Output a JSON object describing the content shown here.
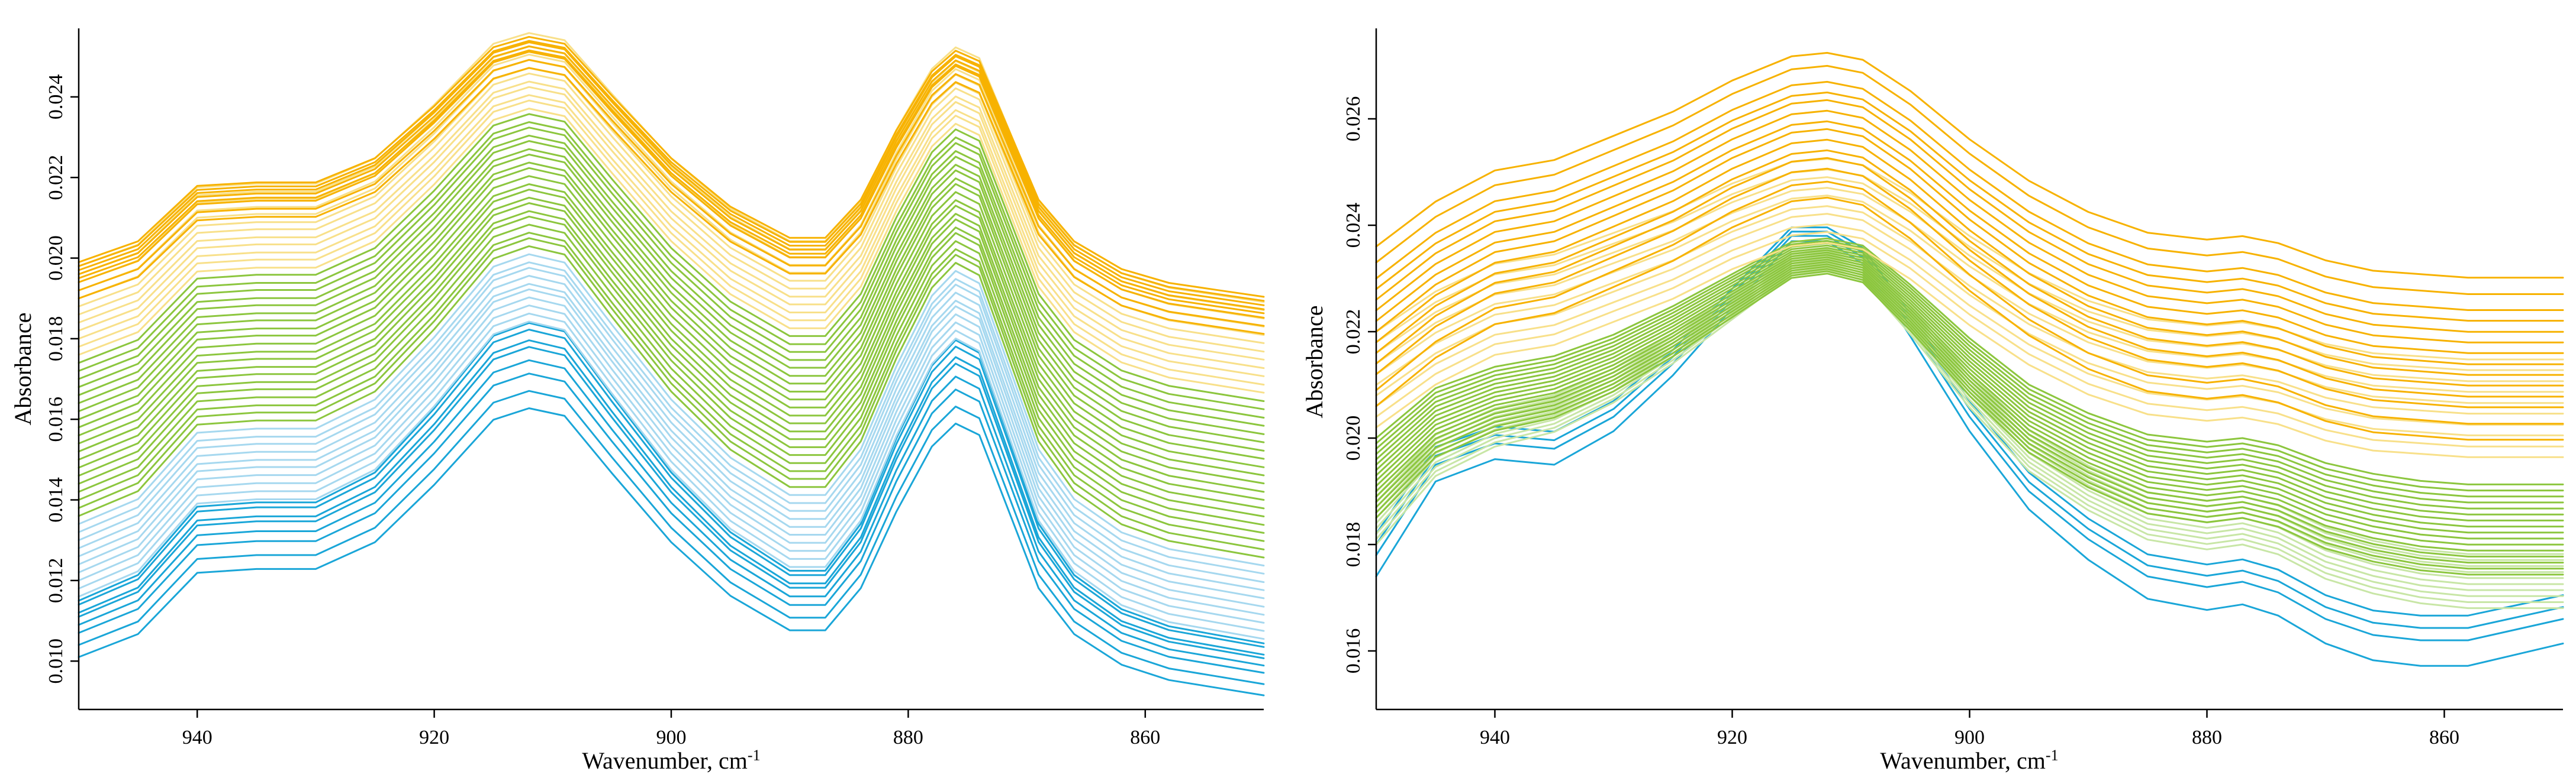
{
  "chart_data": [
    {
      "type": "line",
      "title": "",
      "xlabel": "Wavenumber, cm",
      "xlabel_sup": "-1",
      "ylabel": "Absorbance",
      "xlim": [
        950,
        850
      ],
      "ylim": [
        0.0088,
        0.0257
      ],
      "x_ticks": [
        940,
        920,
        900,
        880,
        860
      ],
      "y_ticks": [
        0.01,
        0.012,
        0.014,
        0.016,
        0.018,
        0.02,
        0.022,
        0.024
      ],
      "y_tick_labels": [
        "0.010",
        "0.012",
        "0.014",
        "0.016",
        "0.018",
        "0.020",
        "0.022",
        "0.024"
      ],
      "grid": false,
      "legend": "none",
      "x": [
        950,
        945,
        940,
        935,
        930,
        925,
        920,
        915,
        912,
        909,
        905,
        900,
        895,
        890,
        887,
        884,
        881,
        878,
        876,
        874,
        872,
        869,
        866,
        862,
        858,
        854,
        850
      ],
      "series_groups": [
        {
          "name": "blue",
          "color": "#1aa6d8",
          "count": 8,
          "shape": [
            0,
            0.6,
            2.2,
            2.3,
            2.3,
            3.0,
            4.5,
            6.2,
            6.5,
            6.3,
            4.8,
            3.0,
            1.6,
            0.7,
            0.7,
            1.8,
            3.8,
            5.5,
            6.1,
            5.8,
            4.2,
            1.8,
            0.6,
            -0.2,
            -0.6,
            -0.8,
            -1.0
          ],
          "start": [
            0.0101,
            0.0104,
            0.0107,
            0.0109,
            0.0111,
            0.0112,
            0.0114,
            0.0115
          ],
          "scale": [
            0.00095,
            0.00097,
            0.00099,
            0.00101,
            0.00103,
            0.00104,
            0.00105,
            0.00106
          ]
        },
        {
          "name": "light-blue",
          "color": "#a6d8ef",
          "count": 10,
          "shape": [
            0,
            0.6,
            2.2,
            2.3,
            2.3,
            3.0,
            4.5,
            6.2,
            6.5,
            6.3,
            4.8,
            3.0,
            1.6,
            0.7,
            0.7,
            1.8,
            3.8,
            5.5,
            6.1,
            5.8,
            4.2,
            1.8,
            0.6,
            -0.2,
            -0.6,
            -0.8,
            -1.0
          ],
          "start": [
            0.0116,
            0.0118,
            0.012,
            0.0122,
            0.0124,
            0.0126,
            0.0128,
            0.013,
            0.0132,
            0.0134
          ],
          "scale": [
            0.00105,
            0.00105,
            0.00105,
            0.00105,
            0.00105,
            0.00104,
            0.00104,
            0.00104,
            0.00103,
            0.00103
          ]
        },
        {
          "name": "green",
          "color": "#8cc63e",
          "count": 20,
          "shape": [
            0,
            0.6,
            2.2,
            2.3,
            2.3,
            3.0,
            4.5,
            6.2,
            6.5,
            6.3,
            4.8,
            3.0,
            1.6,
            0.7,
            0.7,
            1.8,
            3.8,
            5.5,
            6.1,
            5.8,
            4.2,
            1.8,
            0.6,
            -0.2,
            -0.6,
            -0.8,
            -1.0
          ],
          "start": [
            0.0136,
            0.0138,
            0.014,
            0.0142,
            0.0144,
            0.0146,
            0.0148,
            0.015,
            0.0152,
            0.0154,
            0.0156,
            0.0158,
            0.016,
            0.0162,
            0.0164,
            0.0166,
            0.0168,
            0.017,
            0.0172,
            0.0174
          ],
          "scale": [
            0.00103,
            0.00103,
            0.00102,
            0.00102,
            0.00102,
            0.00101,
            0.00101,
            0.001,
            0.001,
            0.00099,
            0.00099,
            0.00099,
            0.00098,
            0.00098,
            0.00097,
            0.00097,
            0.00096,
            0.00096,
            0.00095,
            0.00095
          ]
        },
        {
          "name": "light-yellow",
          "color": "#f8e08a",
          "count": 12,
          "shape": [
            0,
            0.6,
            2.2,
            2.3,
            2.3,
            3.0,
            4.5,
            6.2,
            6.5,
            6.3,
            4.8,
            3.0,
            1.6,
            0.7,
            0.7,
            1.8,
            3.8,
            5.5,
            6.1,
            5.8,
            4.2,
            1.8,
            0.6,
            -0.2,
            -0.6,
            -0.8,
            -1.0
          ],
          "start": [
            0.0176,
            0.0178,
            0.018,
            0.0182,
            0.0184,
            0.0186,
            0.0188,
            0.019,
            0.0192,
            0.0194,
            0.0196,
            0.0198
          ],
          "scale": [
            0.00094,
            0.00094,
            0.00093,
            0.00093,
            0.00092,
            0.00092,
            0.00091,
            0.00091,
            0.0009,
            0.0009,
            0.00089,
            0.00089
          ]
        },
        {
          "name": "orange",
          "color": "#f7b200",
          "count": 8,
          "shape": [
            0,
            0.6,
            2.2,
            2.3,
            2.3,
            3.0,
            4.5,
            6.2,
            6.5,
            6.3,
            4.8,
            3.0,
            1.6,
            0.7,
            0.7,
            1.8,
            3.8,
            5.5,
            6.1,
            5.8,
            4.2,
            1.8,
            0.6,
            -0.2,
            -0.6,
            -0.8,
            -1.0
          ],
          "start": [
            0.019,
            0.0192,
            0.0194,
            0.0195,
            0.0196,
            0.0197,
            0.0198,
            0.0199
          ],
          "scale": [
            0.00088,
            0.00088,
            0.00088,
            0.00087,
            0.00087,
            0.00087,
            0.00086,
            0.00086
          ]
        }
      ]
    },
    {
      "type": "line",
      "title": "",
      "xlabel": "Wavenumber, cm",
      "xlabel_sup": "-1",
      "ylabel": "Absorbance",
      "xlim": [
        950,
        850
      ],
      "ylim": [
        0.0149,
        0.0277
      ],
      "x_ticks": [
        940,
        920,
        900,
        880,
        860
      ],
      "y_ticks": [
        0.016,
        0.018,
        0.02,
        0.022,
        0.024,
        0.026
      ],
      "y_tick_labels": [
        "0.016",
        "0.018",
        "0.020",
        "0.022",
        "0.024",
        "0.026"
      ],
      "grid": false,
      "legend": "none",
      "x": [
        950,
        945,
        940,
        935,
        930,
        925,
        920,
        915,
        912,
        909,
        905,
        900,
        895,
        890,
        885,
        880,
        877,
        874,
        870,
        866,
        862,
        858,
        854,
        850
      ],
      "series_groups": [
        {
          "name": "blue",
          "color": "#1aa6d8",
          "count": 4,
          "shape": [
            0,
            1.7,
            2.1,
            2.0,
            2.6,
            3.6,
            4.8,
            6.0,
            6.0,
            5.6,
            4.3,
            2.6,
            1.2,
            0.3,
            -0.4,
            -0.6,
            -0.5,
            -0.7,
            -1.2,
            -1.5,
            -1.6,
            -1.6,
            -1.4,
            -1.2
          ],
          "start": [
            0.0174,
            0.0178,
            0.018,
            0.0182
          ],
          "scale": [
            0.00105,
            0.001,
            0.00098,
            0.00096
          ]
        },
        {
          "name": "light-green",
          "color": "#c8e6a6",
          "count": 10,
          "shape": [
            0,
            1.4,
            2.0,
            2.3,
            2.9,
            3.7,
            4.6,
            5.5,
            5.6,
            5.4,
            4.3,
            2.8,
            1.5,
            0.7,
            0.1,
            -0.1,
            0.0,
            -0.2,
            -0.7,
            -1.0,
            -1.2,
            -1.3,
            -1.3,
            -1.3
          ],
          "start": [
            0.018,
            0.0181,
            0.0182,
            0.0183,
            0.0184,
            0.0185,
            0.0186,
            0.0187,
            0.0188,
            0.0189
          ],
          "scale": [
            0.00092,
            0.00091,
            0.0009,
            0.00089,
            0.00088,
            0.00087,
            0.00086,
            0.00085,
            0.00084,
            0.00083
          ]
        },
        {
          "name": "green",
          "color": "#8cc63e",
          "count": 16,
          "shape": [
            0,
            1.4,
            2.0,
            2.3,
            2.9,
            3.7,
            4.6,
            5.5,
            5.6,
            5.4,
            4.3,
            2.8,
            1.5,
            0.7,
            0.1,
            -0.1,
            0.0,
            -0.2,
            -0.7,
            -1.0,
            -1.2,
            -1.3,
            -1.3,
            -1.3
          ],
          "start": [
            0.0185,
            0.0186,
            0.0187,
            0.0188,
            0.0189,
            0.019,
            0.0191,
            0.0192,
            0.0193,
            0.0194,
            0.0195,
            0.0196,
            0.0197,
            0.0198,
            0.0199,
            0.02
          ],
          "scale": [
            0.00082,
            0.00081,
            0.0008,
            0.00079,
            0.00078,
            0.00077,
            0.00076,
            0.00075,
            0.00074,
            0.00073,
            0.00072,
            0.00071,
            0.0007,
            0.00069,
            0.00068,
            0.00067
          ]
        },
        {
          "name": "light-yellow",
          "color": "#f8e08a",
          "count": 10,
          "shape": [
            0,
            1.3,
            2.2,
            2.5,
            3.2,
            3.9,
            4.8,
            5.5,
            5.6,
            5.4,
            4.5,
            3.1,
            1.9,
            1.0,
            0.4,
            0.2,
            0.3,
            0.1,
            -0.4,
            -0.7,
            -0.8,
            -0.9,
            -0.9,
            -0.9
          ],
          "start": [
            0.0202,
            0.0204,
            0.0206,
            0.0208,
            0.021,
            0.0212,
            0.0214,
            0.0216,
            0.0218,
            0.022
          ],
          "scale": [
            0.00062,
            0.00062,
            0.00061,
            0.00061,
            0.0006,
            0.0006,
            0.00059,
            0.00059,
            0.00058,
            0.00058
          ]
        },
        {
          "name": "orange",
          "color": "#f7b200",
          "count": 14,
          "shape": [
            0,
            1.3,
            2.2,
            2.5,
            3.2,
            3.9,
            4.8,
            5.5,
            5.6,
            5.4,
            4.5,
            3.1,
            1.9,
            1.0,
            0.4,
            0.2,
            0.3,
            0.1,
            -0.4,
            -0.7,
            -0.8,
            -0.9,
            -0.9,
            -0.9
          ],
          "start": [
            0.0206,
            0.0209,
            0.0212,
            0.0214,
            0.0216,
            0.0218,
            0.022,
            0.0222,
            0.0224,
            0.0226,
            0.0228,
            0.023,
            0.0233,
            0.0236
          ],
          "scale": [
            0.0007,
            0.0007,
            0.00069,
            0.00069,
            0.00068,
            0.00068,
            0.00068,
            0.00067,
            0.00067,
            0.00067,
            0.00066,
            0.00066,
            0.00066,
            0.00065
          ]
        }
      ]
    }
  ]
}
